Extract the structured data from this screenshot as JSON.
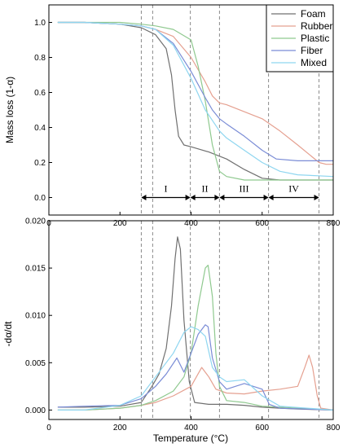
{
  "chart_data": [
    {
      "type": "line",
      "ylabel": "Mass loss (1-α)",
      "xlim": [
        0,
        800
      ],
      "ylim": [
        -0.1,
        1.1
      ],
      "xticks": [
        "0",
        "200",
        "400",
        "600",
        "800"
      ],
      "yticks": [
        "0.0",
        "0.2",
        "0.4",
        "0.6",
        "0.8",
        "1.0"
      ],
      "grid": false,
      "legend": "top-right",
      "dashed_lines_x": [
        260,
        292,
        398,
        480,
        618,
        760
      ],
      "stages": [
        {
          "label": "I",
          "from": 260,
          "to": 398
        },
        {
          "label": "II",
          "from": 398,
          "to": 480
        },
        {
          "label": "III",
          "from": 480,
          "to": 618
        },
        {
          "label": "IV",
          "from": 618,
          "to": 760
        }
      ],
      "series": [
        {
          "name": "Foam",
          "color": "#707070",
          "x": [
            25,
            100,
            200,
            260,
            300,
            330,
            345,
            355,
            365,
            380,
            400,
            450,
            500,
            550,
            600,
            650,
            700,
            800
          ],
          "y": [
            1.0,
            1.0,
            0.99,
            0.97,
            0.93,
            0.85,
            0.7,
            0.5,
            0.35,
            0.3,
            0.29,
            0.26,
            0.22,
            0.16,
            0.11,
            0.1,
            0.1,
            0.1
          ]
        },
        {
          "name": "Rubber",
          "color": "#e5a090",
          "x": [
            25,
            100,
            200,
            260,
            300,
            350,
            400,
            440,
            460,
            480,
            500,
            600,
            650,
            700,
            760,
            780,
            800
          ],
          "y": [
            1.0,
            1.0,
            0.99,
            0.98,
            0.96,
            0.92,
            0.8,
            0.66,
            0.58,
            0.54,
            0.53,
            0.45,
            0.38,
            0.3,
            0.2,
            0.19,
            0.19
          ]
        },
        {
          "name": "Plastic",
          "color": "#8fc98f",
          "x": [
            25,
            100,
            200,
            260,
            300,
            350,
            400,
            420,
            440,
            460,
            480,
            500,
            550,
            600,
            800
          ],
          "y": [
            1.0,
            1.0,
            1.0,
            0.99,
            0.98,
            0.96,
            0.9,
            0.75,
            0.55,
            0.3,
            0.15,
            0.12,
            0.1,
            0.1,
            0.1
          ]
        },
        {
          "name": "Fiber",
          "color": "#7a8cd6",
          "x": [
            25,
            100,
            200,
            260,
            300,
            350,
            400,
            440,
            460,
            480,
            500,
            550,
            600,
            640,
            700,
            800
          ],
          "y": [
            1.0,
            1.0,
            0.99,
            0.98,
            0.96,
            0.88,
            0.72,
            0.57,
            0.5,
            0.45,
            0.42,
            0.35,
            0.27,
            0.22,
            0.21,
            0.21
          ]
        },
        {
          "name": "Mixed",
          "color": "#8fd6f0",
          "x": [
            25,
            100,
            200,
            260,
            300,
            350,
            400,
            440,
            480,
            500,
            550,
            600,
            650,
            700,
            800
          ],
          "y": [
            1.0,
            1.0,
            0.99,
            0.98,
            0.96,
            0.87,
            0.68,
            0.5,
            0.38,
            0.34,
            0.27,
            0.2,
            0.15,
            0.13,
            0.12
          ]
        }
      ]
    },
    {
      "type": "line",
      "xlabel": "Temperature (°C)",
      "ylabel": "-dα/dt",
      "xlim": [
        0,
        800
      ],
      "ylim": [
        -0.001,
        0.02
      ],
      "xticks": [
        "0",
        "200",
        "400",
        "600",
        "800"
      ],
      "yticks": [
        "0.000",
        "0.005",
        "0.010",
        "0.015",
        "0.020"
      ],
      "grid": false,
      "dashed_lines_x": [
        260,
        292,
        398,
        480,
        618,
        760
      ],
      "series": [
        {
          "name": "Foam",
          "color": "#707070",
          "x": [
            25,
            100,
            200,
            260,
            290,
            310,
            330,
            345,
            355,
            362,
            370,
            380,
            395,
            410,
            450,
            500,
            550,
            600,
            650,
            700,
            800
          ],
          "y": [
            0.0003,
            0.0003,
            0.0004,
            0.0008,
            0.0025,
            0.0038,
            0.0065,
            0.011,
            0.016,
            0.0183,
            0.017,
            0.0095,
            0.003,
            0.0008,
            0.0006,
            0.0006,
            0.0005,
            0.0003,
            0.0002,
            0.0001,
            0.0
          ]
        },
        {
          "name": "Rubber",
          "color": "#e5a090",
          "x": [
            25,
            100,
            200,
            260,
            300,
            350,
            400,
            430,
            450,
            470,
            500,
            550,
            600,
            650,
            700,
            720,
            732,
            742,
            755,
            765,
            800
          ],
          "y": [
            0.0,
            0.0,
            0.0002,
            0.0005,
            0.0008,
            0.0015,
            0.0025,
            0.0045,
            0.0035,
            0.0022,
            0.0018,
            0.0017,
            0.002,
            0.0022,
            0.0025,
            0.0045,
            0.0058,
            0.0045,
            0.0015,
            0.0002,
            0.0
          ]
        },
        {
          "name": "Plastic",
          "color": "#8fc98f",
          "x": [
            25,
            100,
            200,
            260,
            300,
            350,
            380,
            400,
            420,
            440,
            448,
            460,
            470,
            480,
            500,
            550,
            600,
            800
          ],
          "y": [
            0.0,
            0.0,
            0.0002,
            0.0005,
            0.001,
            0.002,
            0.0035,
            0.006,
            0.011,
            0.015,
            0.0153,
            0.012,
            0.006,
            0.0025,
            0.001,
            0.0008,
            0.0004,
            0.0
          ]
        },
        {
          "name": "Fiber",
          "color": "#7a8cd6",
          "x": [
            25,
            100,
            200,
            260,
            300,
            330,
            360,
            380,
            400,
            420,
            440,
            448,
            460,
            480,
            500,
            550,
            600,
            620,
            650,
            800
          ],
          "y": [
            0.0003,
            0.0004,
            0.0005,
            0.0012,
            0.0025,
            0.0038,
            0.0055,
            0.004,
            0.006,
            0.008,
            0.009,
            0.0088,
            0.0055,
            0.003,
            0.0022,
            0.0028,
            0.0022,
            0.0006,
            0.0002,
            0.0
          ]
        },
        {
          "name": "Mixed",
          "color": "#8fd6f0",
          "x": [
            25,
            100,
            200,
            260,
            300,
            350,
            380,
            400,
            420,
            440,
            460,
            480,
            500,
            550,
            600,
            650,
            800
          ],
          "y": [
            0.0,
            0.0,
            0.0005,
            0.0015,
            0.0035,
            0.006,
            0.0082,
            0.0088,
            0.0085,
            0.0078,
            0.0045,
            0.0035,
            0.003,
            0.0032,
            0.0015,
            0.0004,
            0.0
          ]
        }
      ]
    }
  ]
}
